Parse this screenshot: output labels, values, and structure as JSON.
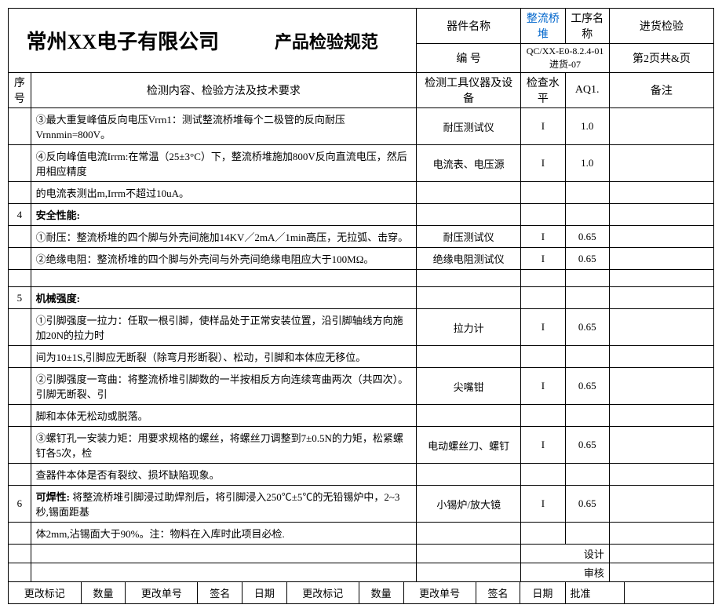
{
  "header": {
    "company": "常州XX电子有限公司",
    "title": "产品检验规范",
    "device_label": "器件名称",
    "device_name": "整流桥堆",
    "process_label": "工序名称",
    "process_name": "进货检验",
    "code_label": "编 号",
    "code_value": "QC/XX-E0-8.2.4-01进货-07",
    "page_info": "第2页共&页"
  },
  "columns": {
    "seq": "序号",
    "content": "检测内容、检验方法及技术要求",
    "tool": "检测工具仪器及设备",
    "level": "检查水平",
    "aq": "AQ1.",
    "note": "备注"
  },
  "rows": [
    {
      "seq": "",
      "content": "③最大重复峰值反向电压Vrrn1：测试整流桥堆每个二极管的反向耐压Vrnnmin=800V。",
      "tool": "耐压测试仪",
      "level": "I",
      "aq": "1.0",
      "note": ""
    },
    {
      "seq": "",
      "content": "④反向峰值电流Irrm:在常温（25±3°C）下，整流桥堆施加800V反向直流电压，然后用相应精度",
      "tool": "电流表、电压源",
      "level": "I",
      "aq": "1.0",
      "note": ""
    },
    {
      "seq": "",
      "content": "的电流表测出m,Irrm不超过10uA。",
      "tool": "",
      "level": "",
      "aq": "",
      "note": ""
    },
    {
      "seq": "4",
      "content_bold": "安全性能:",
      "tool": "",
      "level": "",
      "aq": "",
      "note": ""
    },
    {
      "seq": "",
      "content": "①耐压：整流桥堆的四个脚与外壳间施加14KV／2mA／1min高压，无拉弧、击穿。",
      "tool": "耐压测试仪",
      "level": "I",
      "aq": "0.65",
      "note": ""
    },
    {
      "seq": "",
      "content": "②绝缘电阻：整流桥堆的四个脚与外壳间与外壳间绝缘电阻应大于100MΩ。",
      "tool": "绝缘电阻测试仪",
      "level": "I",
      "aq": "0.65",
      "note": ""
    },
    {
      "seq": "",
      "content": "",
      "tool": "",
      "level": "",
      "aq": "",
      "note": ""
    },
    {
      "seq": "5",
      "content_bold": "机械强度:",
      "tool": "",
      "level": "",
      "aq": "",
      "note": ""
    },
    {
      "seq": "",
      "content": "①引脚强度一拉力：任取一根引脚，使样品处于正常安装位置，沿引脚轴线方向施加20N的拉力时",
      "tool": "拉力计",
      "level": "I",
      "aq": "0.65",
      "note": ""
    },
    {
      "seq": "",
      "content": "间为10±1S,引脚应无断裂（除弯月形断裂）、松动，引脚和本体应无移位。",
      "tool": "",
      "level": "",
      "aq": "",
      "note": ""
    },
    {
      "seq": "",
      "content": "②引脚强度一弯曲：将整流桥堆引脚数的一半按相反方向连续弯曲两次（共四次）。引脚无断裂、引",
      "tool": "尖嘴钳",
      "level": "I",
      "aq": "0.65",
      "note": ""
    },
    {
      "seq": "",
      "content": "脚和本体无松动或脱落。",
      "tool": "",
      "level": "",
      "aq": "",
      "note": ""
    },
    {
      "seq": "",
      "content": "③螺钉孔一安装力矩：用要求规格的螺丝，将螺丝刀调整到7±0.5N的力矩，松紧螺钉各5次，检",
      "tool": "电动螺丝刀、螺钉",
      "level": "I",
      "aq": "0.65",
      "note": ""
    },
    {
      "seq": "",
      "content": "查器件本体是否有裂纹、损坏缺陷现象。",
      "tool": "",
      "level": "",
      "aq": "",
      "note": ""
    },
    {
      "seq": "6",
      "content_prefix_bold": "可焊性:",
      "content_rest": " 将整流桥堆引脚浸过助焊剂后，将引脚浸入250℃±5℃的无铅锡炉中，2~3秒,锡面距基",
      "tool": "小锡炉/放大镜",
      "level": "I",
      "aq": "0.65",
      "note": ""
    },
    {
      "seq": "",
      "content": "体2mm,沾锡面大于90%。注：物料在入库时此项目必检.",
      "tool": "",
      "level": "",
      "aq": "",
      "note": ""
    }
  ],
  "signoff": {
    "design": "设计",
    "review": "审核",
    "approve": "批准"
  },
  "footer": {
    "c1": "更改标记",
    "c2": "数量",
    "c3": "更改单号",
    "c4": "签名",
    "c5": "日期",
    "c6": "更改标记",
    "c7": "数量",
    "c8": "更改单号",
    "c9": "签名",
    "c10": "日期"
  }
}
